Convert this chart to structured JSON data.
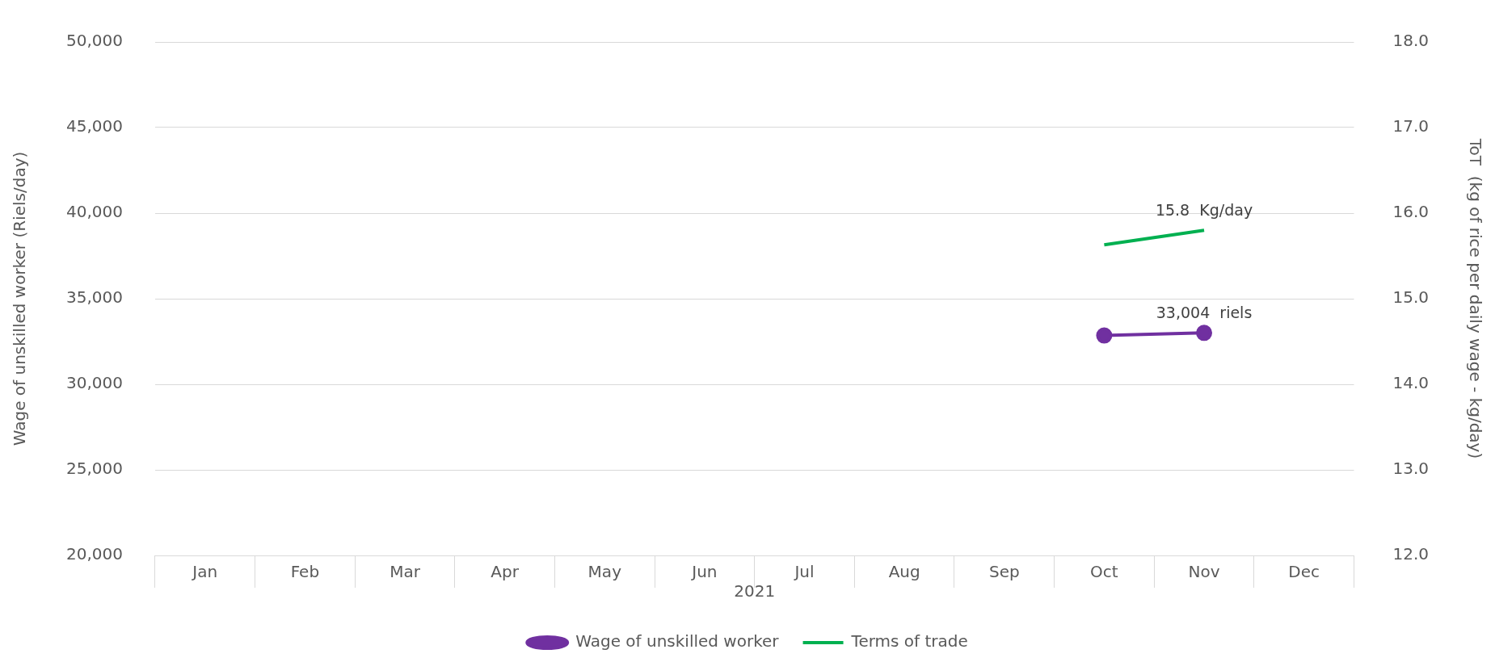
{
  "chart_data": {
    "type": "line",
    "xlabel": "2021",
    "ylabel": "Wage of unskilled worker (Riels/day)",
    "y2label": "ToT  (kg of rice per daily wage - kg/day)",
    "categories": [
      "Jan",
      "Feb",
      "Mar",
      "Apr",
      "May",
      "Jun",
      "Jul",
      "Aug",
      "Sep",
      "Oct",
      "Nov",
      "Dec"
    ],
    "series": [
      {
        "name": "Wage of unskilled worker",
        "color": "#7030a0",
        "marker": "circle",
        "values": [
          null,
          null,
          null,
          null,
          null,
          null,
          null,
          null,
          null,
          32850,
          33004,
          null
        ],
        "value_labels": [
          null,
          null,
          null,
          null,
          null,
          null,
          null,
          null,
          null,
          null,
          "33,004  riels",
          null
        ]
      },
      {
        "name": "Terms of trade",
        "color": "#00b050",
        "marker": "none",
        "axis": "y2",
        "values": [
          null,
          null,
          null,
          null,
          null,
          null,
          null,
          null,
          null,
          15.63,
          15.8,
          null
        ],
        "value_labels": [
          null,
          null,
          null,
          null,
          null,
          null,
          null,
          null,
          null,
          null,
          "15.8  Kg/day",
          null
        ]
      }
    ],
    "ylim": [
      20000,
      50000
    ],
    "yticks": [
      {
        "value": 20000,
        "label": "20,000"
      },
      {
        "value": 25000,
        "label": "25,000"
      },
      {
        "value": 30000,
        "label": "30,000"
      },
      {
        "value": 35000,
        "label": "35,000"
      },
      {
        "value": 40000,
        "label": "40,000"
      },
      {
        "value": 45000,
        "label": "45,000"
      },
      {
        "value": 50000,
        "label": "50,000"
      }
    ],
    "y2lim": [
      12,
      18
    ],
    "y2ticks": [
      {
        "value": 12,
        "label": "12.0"
      },
      {
        "value": 13,
        "label": "13.0"
      },
      {
        "value": 14,
        "label": "14.0"
      },
      {
        "value": 15,
        "label": "15.0"
      },
      {
        "value": 16,
        "label": "16.0"
      },
      {
        "value": 17,
        "label": "17.0"
      },
      {
        "value": 18,
        "label": "18.0"
      }
    ],
    "grid": "y",
    "legend": "bottom"
  }
}
